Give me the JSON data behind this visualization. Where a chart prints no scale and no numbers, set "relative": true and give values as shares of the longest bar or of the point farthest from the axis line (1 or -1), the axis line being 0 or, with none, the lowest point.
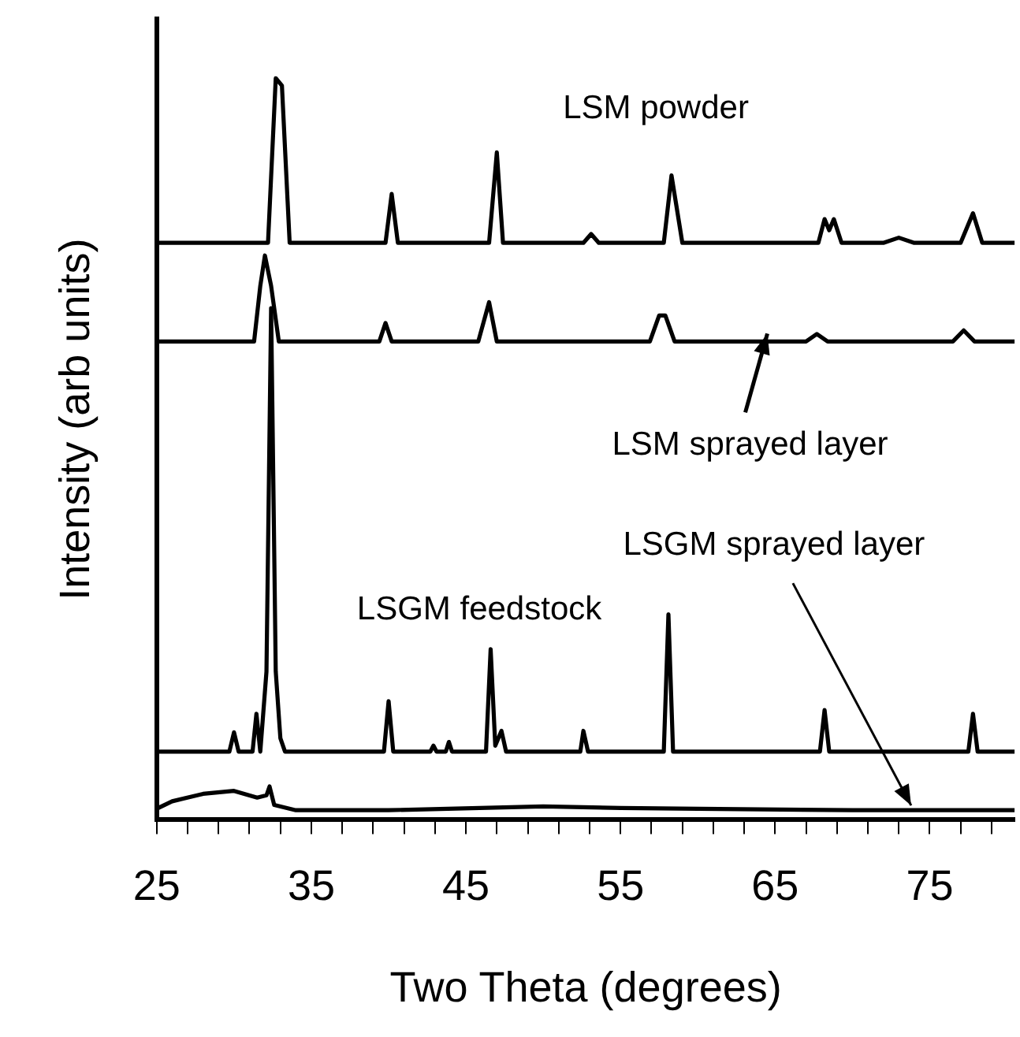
{
  "chart_data": {
    "type": "line",
    "relative": true,
    "xlabel": "Two Theta (degrees)",
    "ylabel": "Intensity (arb units)",
    "xlim": [
      25,
      80.5
    ],
    "xticks": [
      25,
      {
        "value": 27,
        "label": null
      },
      {
        "value": 29,
        "label": null
      },
      {
        "value": 31,
        "label": null
      },
      {
        "value": 33,
        "label": null
      },
      35,
      {
        "value": 37,
        "label": null
      },
      {
        "value": 39,
        "label": null
      },
      {
        "value": 41,
        "label": null
      },
      {
        "value": 43,
        "label": null
      },
      45,
      {
        "value": 47,
        "label": null
      },
      {
        "value": 49,
        "label": null
      },
      {
        "value": 51,
        "label": null
      },
      {
        "value": 53,
        "label": null
      },
      55,
      {
        "value": 57,
        "label": null
      },
      {
        "value": 59,
        "label": null
      },
      {
        "value": 61,
        "label": null
      },
      {
        "value": 63,
        "label": null
      },
      65,
      {
        "value": 67,
        "label": null
      },
      {
        "value": 69,
        "label": null
      },
      {
        "value": 71,
        "label": null
      },
      {
        "value": 73,
        "label": null
      },
      75,
      {
        "value": 77,
        "label": null
      },
      {
        "value": 79,
        "label": null
      }
    ],
    "grid": false,
    "legend": false,
    "marker": "none",
    "series": [
      {
        "color": "#000000",
        "x": [
          25,
          32.2,
          32.7,
          33.1,
          33.6,
          39.8,
          40.2,
          40.6,
          46.5,
          47.0,
          47.4,
          52.6,
          53.1,
          53.6,
          57.8,
          58.3,
          58.6,
          59.0,
          67.8,
          68.2,
          68.5,
          68.8,
          69.3,
          72,
          73,
          74,
          77.0,
          77.8,
          78.4,
          80.5
        ],
        "values": [
          0.778,
          0.778,
          1.0,
          0.99,
          0.778,
          0.778,
          0.844,
          0.778,
          0.778,
          0.9,
          0.778,
          0.778,
          0.79,
          0.778,
          0.778,
          0.869,
          0.83,
          0.778,
          0.778,
          0.81,
          0.795,
          0.81,
          0.778,
          0.778,
          0.785,
          0.778,
          0.778,
          0.818,
          0.778,
          0.778
        ]
      },
      {
        "color": "#000000",
        "x": [
          25,
          31.3,
          31.7,
          32.0,
          32.4,
          32.9,
          39.4,
          39.8,
          40.2,
          45.8,
          46.5,
          47.0,
          56.9,
          57.5,
          57.9,
          58.5,
          67.0,
          67.7,
          68.4,
          76.5,
          77.2,
          77.9,
          80.5
        ],
        "values": [
          0.645,
          0.645,
          0.72,
          0.761,
          0.72,
          0.645,
          0.645,
          0.67,
          0.645,
          0.645,
          0.698,
          0.645,
          0.645,
          0.68,
          0.68,
          0.645,
          0.645,
          0.655,
          0.645,
          0.645,
          0.66,
          0.645,
          0.645
        ]
      },
      {
        "color": "#000000",
        "x": [
          25,
          29.7,
          30.0,
          30.3,
          31.2,
          31.45,
          31.7,
          32.1,
          32.4,
          32.7,
          33.0,
          33.3,
          39.7,
          40.0,
          40.3,
          42.7,
          42.9,
          43.1,
          43.7,
          43.9,
          44.1,
          46.3,
          46.6,
          46.9,
          47.3,
          47.6,
          52.4,
          52.6,
          52.9,
          57.8,
          58.1,
          58.4,
          67.9,
          68.2,
          68.5,
          77.5,
          77.8,
          78.1,
          80.5
        ],
        "values": [
          0.092,
          0.092,
          0.118,
          0.092,
          0.092,
          0.143,
          0.092,
          0.2,
          0.69,
          0.2,
          0.11,
          0.092,
          0.092,
          0.16,
          0.092,
          0.092,
          0.1,
          0.092,
          0.092,
          0.105,
          0.092,
          0.092,
          0.23,
          0.1,
          0.12,
          0.092,
          0.092,
          0.12,
          0.092,
          0.092,
          0.277,
          0.092,
          0.092,
          0.148,
          0.092,
          0.092,
          0.143,
          0.092,
          0.092
        ]
      },
      {
        "color": "#000000",
        "x": [
          25,
          26,
          28,
          30,
          31.5,
          32.1,
          32.3,
          32.6,
          34,
          40,
          50,
          55,
          60,
          70,
          80.5
        ],
        "values": [
          0.015,
          0.025,
          0.035,
          0.039,
          0.03,
          0.033,
          0.045,
          0.02,
          0.013,
          0.013,
          0.018,
          0.016,
          0.015,
          0.013,
          0.013
        ]
      }
    ],
    "annotations": [
      "LSM powder",
      {
        "text": "LSM sprayed layer",
        "x": 64.5,
        "y": 0.645
      },
      "LSGM feedstock",
      {
        "text": "LSGM sprayed layer",
        "x": 73.8,
        "y": 0.013
      }
    ]
  }
}
